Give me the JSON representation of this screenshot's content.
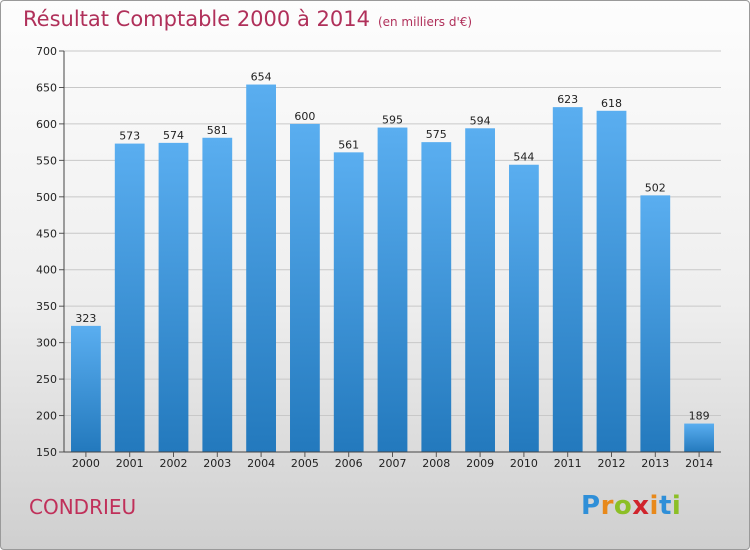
{
  "header": {
    "title": "Résultat Comptable 2000 à 2014",
    "subtitle": "(en milliers d'€)"
  },
  "footer": {
    "place": "CONDRIEU",
    "logo": {
      "letters": [
        "P",
        "r",
        "o",
        "x",
        "i",
        "t",
        "i"
      ],
      "colors": [
        "#2f8fd8",
        "#e8891a",
        "#8cbf26",
        "#d0242c",
        "#e8891a",
        "#2f8fd8",
        "#8cbf26"
      ]
    }
  },
  "colors": {
    "bar_top": "#5aaef0",
    "bar_bottom": "#2379bd",
    "grid": "#c8c8c8",
    "title": "#b0305a"
  },
  "chart_data": {
    "type": "bar",
    "title": "Résultat Comptable 2000 à 2014",
    "subtitle": "(en milliers d'€)",
    "categories": [
      "2000",
      "2001",
      "2002",
      "2003",
      "2004",
      "2005",
      "2006",
      "2007",
      "2008",
      "2009",
      "2010",
      "2011",
      "2012",
      "2013",
      "2014"
    ],
    "values": [
      323,
      573,
      574,
      581,
      654,
      600,
      561,
      595,
      575,
      594,
      544,
      623,
      618,
      502,
      189
    ],
    "ylim": [
      150,
      700
    ],
    "yticks": [
      150,
      200,
      250,
      300,
      350,
      400,
      450,
      500,
      550,
      600,
      650,
      700
    ],
    "grid": true,
    "xlabel": "",
    "ylabel": ""
  }
}
